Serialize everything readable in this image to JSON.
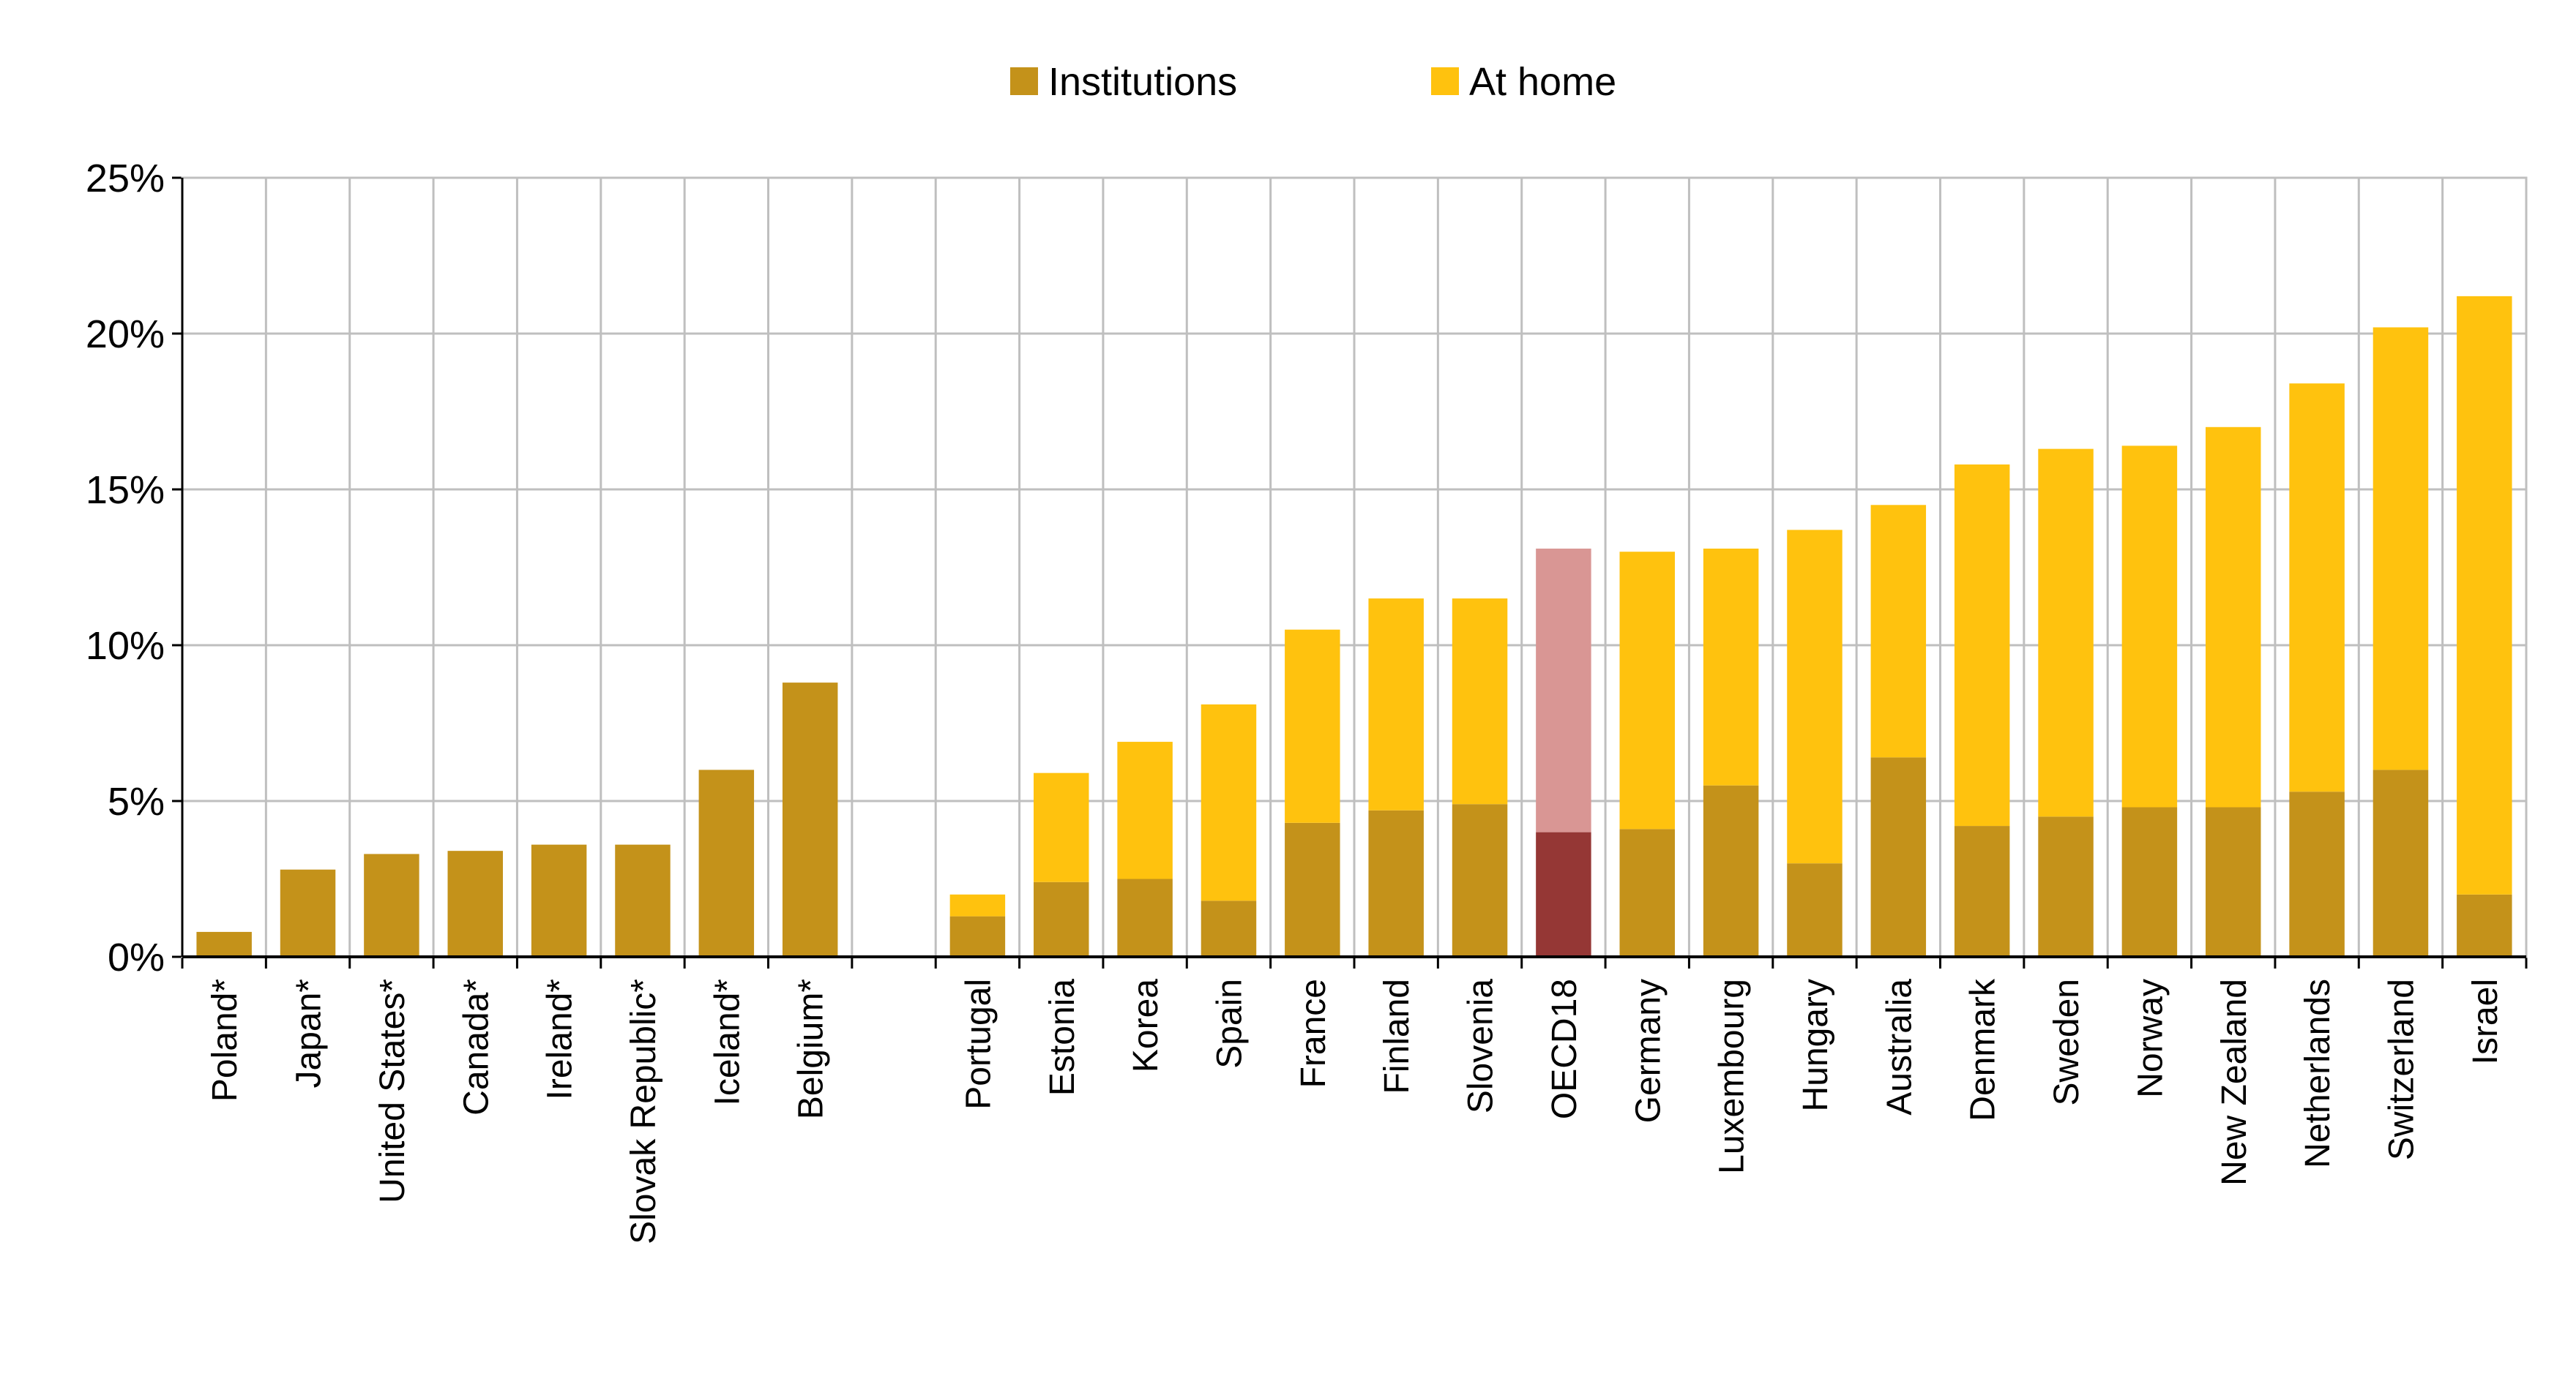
{
  "chart_data": {
    "type": "stacked_bar",
    "categories": [
      "Poland*",
      "Japan*",
      "United States*",
      "Canada*",
      "Ireland*",
      "Slovak Republic*",
      "Iceland*",
      "Belgium*",
      null,
      "Portugal",
      "Estonia",
      "Korea",
      "Spain",
      "France",
      "Finland",
      "Slovenia",
      "OECD18",
      "Germany",
      "Luxembourg",
      "Hungary",
      "Australia",
      "Denmark",
      "Sweden",
      "Norway",
      "New Zealand",
      "Netherlands",
      "Switzerland",
      "Israel"
    ],
    "series": [
      {
        "name": "Institutions",
        "color": "#c4921a",
        "highlight_color": "#953735",
        "values": [
          0.8,
          2.8,
          3.3,
          3.4,
          3.6,
          3.6,
          6.0,
          8.8,
          null,
          1.3,
          2.4,
          2.5,
          1.8,
          4.3,
          4.7,
          4.9,
          4.0,
          4.1,
          5.5,
          3.0,
          6.4,
          4.2,
          4.5,
          4.8,
          4.8,
          5.3,
          6.0,
          2.0
        ]
      },
      {
        "name": "At home",
        "color": "#ffc20e",
        "highlight_color": "#d99694",
        "values": [
          null,
          null,
          null,
          null,
          null,
          null,
          null,
          null,
          null,
          0.7,
          3.5,
          4.4,
          6.3,
          6.2,
          6.8,
          6.6,
          9.1,
          8.9,
          7.6,
          10.7,
          8.1,
          11.6,
          11.8,
          11.6,
          12.2,
          13.1,
          14.2,
          19.2
        ]
      }
    ],
    "highlight_index": 16,
    "ylim": [
      0,
      25
    ],
    "yticks": [
      {
        "value": 0,
        "label": "0%"
      },
      {
        "value": 5,
        "label": "5%"
      },
      {
        "value": 10,
        "label": "10%"
      },
      {
        "value": 15,
        "label": "15%"
      },
      {
        "value": 20,
        "label": "20%"
      },
      {
        "value": 25,
        "label": "25%"
      }
    ],
    "grid": true,
    "legend": "top"
  }
}
